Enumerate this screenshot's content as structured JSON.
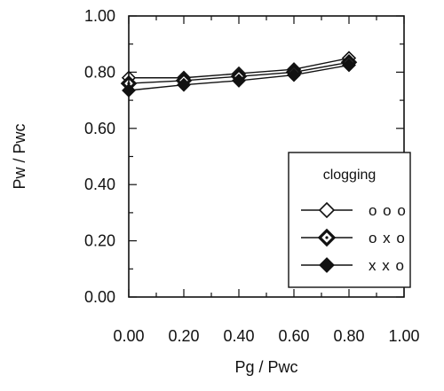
{
  "chart_data": {
    "type": "line",
    "title": "",
    "xlabel": "Pg / Pwc",
    "ylabel": "Pw / Pwc",
    "xlim": [
      0,
      1
    ],
    "ylim": [
      0,
      1
    ],
    "x_ticks": [
      "0.00",
      "0.20",
      "0.40",
      "0.60",
      "0.80",
      "1.00"
    ],
    "y_ticks": [
      "0.00",
      "0.20",
      "0.40",
      "0.60",
      "0.80",
      "1.00"
    ],
    "grid": false,
    "legend": {
      "title": "clogging",
      "placement": "bottom-right"
    },
    "x": [
      0.0,
      0.2,
      0.4,
      0.6,
      0.8
    ],
    "series": [
      {
        "name": "o o o",
        "marker": "open-diamond",
        "values": [
          0.78,
          0.78,
          0.795,
          0.81,
          0.85
        ]
      },
      {
        "name": "o x o",
        "marker": "dotted-diamond",
        "values": [
          0.76,
          0.77,
          0.785,
          0.8,
          0.835
        ]
      },
      {
        "name": "x x o",
        "marker": "filled-diamond",
        "values": [
          0.735,
          0.755,
          0.77,
          0.79,
          0.825
        ]
      }
    ],
    "colors": {
      "axis": "#111111",
      "line": "#111111",
      "marker_fill_open": "#ffffff",
      "marker_fill_filled": "#111111"
    }
  }
}
